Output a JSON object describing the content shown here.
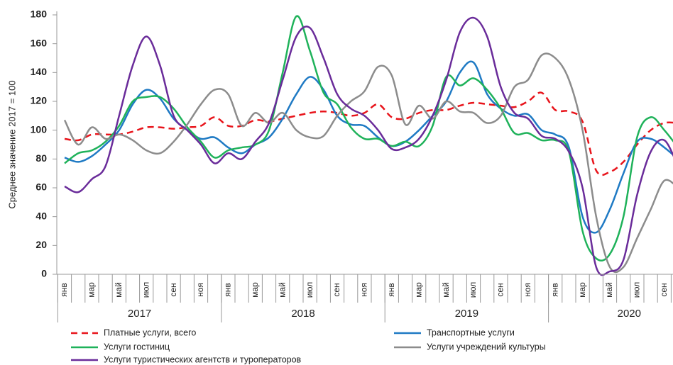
{
  "chart_data": {
    "type": "line",
    "ylabel": "Среднее значение 2017 = 100",
    "categories": [
      "янв",
      null,
      "мар",
      null,
      "май",
      null,
      "июл",
      null,
      "сен",
      null,
      "ноя",
      null,
      "янв",
      null,
      "мар",
      null,
      "май",
      null,
      "июл",
      null,
      "сен",
      null,
      "ноя",
      null,
      "янв",
      null,
      "мар",
      null,
      "май",
      null,
      "июл",
      null,
      "сен",
      null,
      "ноя",
      null,
      "янв",
      null,
      "мар",
      null,
      "май",
      null,
      "июл",
      null,
      "сен",
      null
    ],
    "year_groups": [
      "2017",
      "2018",
      "2019",
      "2020"
    ],
    "ylim": [
      0,
      180
    ],
    "yticks": [
      0,
      20,
      40,
      60,
      80,
      100,
      120,
      140,
      160,
      180
    ],
    "series": [
      {
        "name": "Платные услуги, всего",
        "color": "#e8141b",
        "dashed": true,
        "values": [
          94,
          93,
          97,
          97,
          97,
          99,
          102,
          102,
          101,
          102,
          103,
          109,
          103,
          103,
          107,
          106,
          108,
          110,
          112,
          113,
          112,
          110,
          112,
          118,
          109,
          108,
          112,
          114,
          114,
          117,
          119,
          118,
          117,
          116,
          120,
          126,
          114,
          113,
          106,
          72,
          71,
          78,
          90,
          100,
          105,
          105
        ]
      },
      {
        "name": "Транспортные услуги",
        "color": "#1f7ac4",
        "dashed": false,
        "values": [
          81,
          78,
          82,
          90,
          100,
          118,
          128,
          122,
          108,
          100,
          94,
          95,
          88,
          84,
          90,
          95,
          108,
          125,
          137,
          128,
          110,
          104,
          103,
          95,
          89,
          92,
          100,
          110,
          120,
          140,
          147,
          125,
          115,
          110,
          111,
          100,
          97,
          88,
          40,
          29,
          45,
          70,
          92,
          94,
          88,
          80
        ]
      },
      {
        "name": "Услуги гостиниц",
        "color": "#1fb25a",
        "dashed": false,
        "values": [
          77,
          84,
          86,
          92,
          103,
          120,
          123,
          123,
          115,
          102,
          92,
          81,
          86,
          88,
          90,
          100,
          140,
          179,
          155,
          126,
          118,
          102,
          94,
          94,
          89,
          92,
          89,
          103,
          137,
          131,
          136,
          128,
          115,
          98,
          98,
          93,
          93,
          85,
          30,
          11,
          14,
          40,
          95,
          109,
          100,
          88
        ]
      },
      {
        "name": "Услуги учреждений культуры",
        "color": "#8c8c8c",
        "dashed": false,
        "values": [
          107,
          90,
          102,
          94,
          97,
          93,
          86,
          84,
          92,
          104,
          118,
          128,
          125,
          103,
          112,
          105,
          112,
          100,
          95,
          96,
          110,
          120,
          127,
          144,
          138,
          104,
          117,
          108,
          120,
          113,
          112,
          105,
          110,
          130,
          135,
          152,
          150,
          135,
          100,
          40,
          5,
          5,
          25,
          45,
          65,
          60
        ]
      },
      {
        "name": "Услуги туристических агентств и туроператоров",
        "color": "#6a2c9a",
        "dashed": false,
        "values": [
          61,
          57,
          66,
          75,
          110,
          145,
          165,
          145,
          110,
          100,
          90,
          77,
          84,
          80,
          92,
          105,
          135,
          165,
          171,
          150,
          125,
          115,
          110,
          100,
          87,
          88,
          94,
          110,
          135,
          168,
          178,
          165,
          130,
          112,
          108,
          96,
          94,
          85,
          60,
          5,
          2,
          10,
          55,
          85,
          93,
          75
        ]
      }
    ]
  }
}
